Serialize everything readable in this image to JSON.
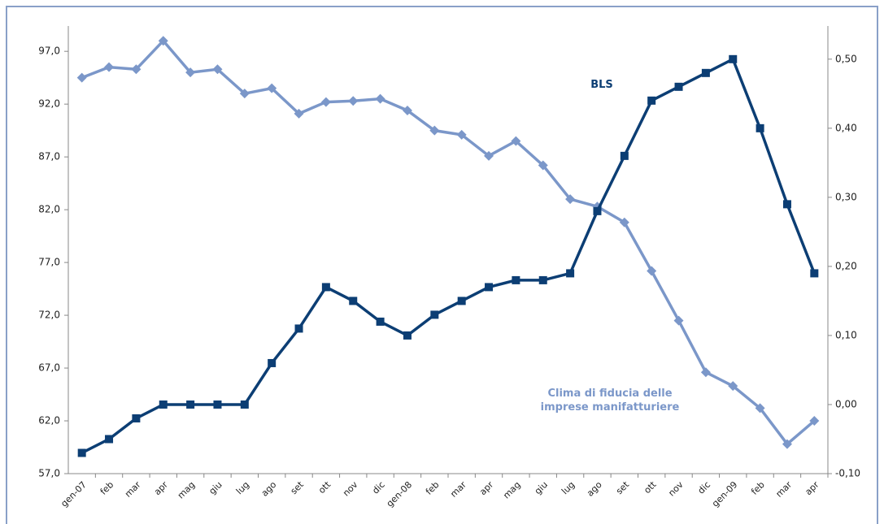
{
  "chart_data": {
    "type": "line",
    "categories": [
      "gen-07",
      "feb",
      "mar",
      "apr",
      "mag",
      "giu",
      "lug",
      "ago",
      "set",
      "ott",
      "nov",
      "dic",
      "gen-08",
      "feb",
      "mar",
      "apr",
      "mag",
      "giu",
      "lug",
      "ago",
      "set",
      "ott",
      "nov",
      "dic",
      "gen-09",
      "feb",
      "mar",
      "apr"
    ],
    "ylim": [
      57,
      99.4
    ],
    "yticks": [
      {
        "value": 57,
        "label": "57,0"
      },
      {
        "value": 62,
        "label": "62,0"
      },
      {
        "value": 67,
        "label": "67,0"
      },
      {
        "value": 72,
        "label": "72,0"
      },
      {
        "value": 77,
        "label": "77,0"
      },
      {
        "value": 82,
        "label": "82,0"
      },
      {
        "value": 87,
        "label": "87,0"
      },
      {
        "value": 92,
        "label": "92,0"
      },
      {
        "value": 97,
        "label": "97,0"
      }
    ],
    "y2lim": [
      -0.1,
      0.548
    ],
    "y2ticks": [
      {
        "value": -0.1,
        "label": "-0,10"
      },
      {
        "value": 0,
        "label": "0,00"
      },
      {
        "value": 0.1,
        "label": "0,10"
      },
      {
        "value": 0.2,
        "label": "0,20"
      },
      {
        "value": 0.3,
        "label": "0,30"
      },
      {
        "value": 0.4,
        "label": "0,40"
      },
      {
        "value": 0.5,
        "label": "0,50"
      }
    ],
    "series": [
      {
        "name": "Clima di fiducia delle imprese manifatturiere",
        "color": "#7b97c9",
        "marker": "diamond",
        "values": [
          94.5,
          95.5,
          95.3,
          98.0,
          95.0,
          95.3,
          93.0,
          93.5,
          91.1,
          92.2,
          92.3,
          92.5,
          91.4,
          89.5,
          89.1,
          87.1,
          88.5,
          86.2,
          83.0,
          82.3,
          80.8,
          76.2,
          71.5,
          66.6,
          65.3,
          63.2,
          59.8,
          62.0
        ]
      },
      {
        "name": "BLS",
        "color": "#0c3e74",
        "marker": "square",
        "axis": "y2",
        "values": [
          -0.07,
          -0.05,
          -0.02,
          0,
          0,
          0,
          0,
          0.06,
          0.11,
          0.17,
          0.15,
          0.12,
          0.1,
          0.13,
          0.15,
          0.17,
          0.18,
          0.18,
          0.19,
          0.28,
          0.36,
          0.44,
          0.46,
          0.48,
          0.5,
          0.4,
          0.29,
          0.19
        ]
      }
    ]
  }
}
